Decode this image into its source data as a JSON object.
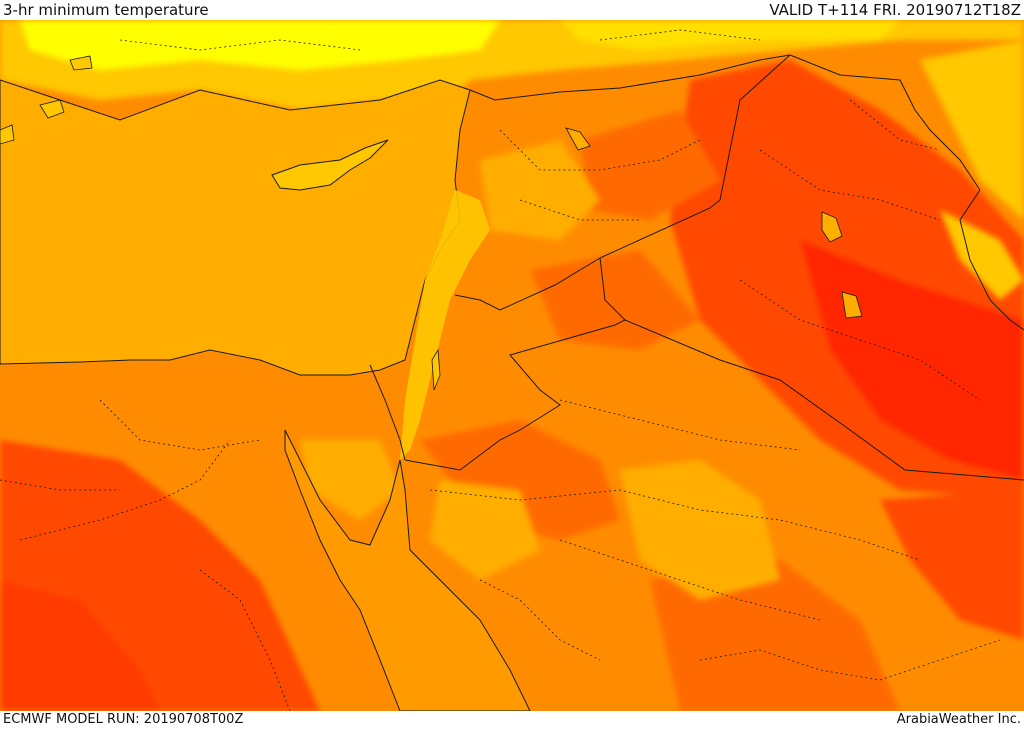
{
  "header": {
    "title": "3-hr minimum temperature",
    "valid": "VALID T+114 FRI. 20190712T18Z"
  },
  "footer": {
    "model_run": "ECMWF MODEL RUN: 20190708T00Z",
    "credit": "ArabiaWeather Inc."
  },
  "palette": {
    "sea": "#ffae00",
    "cool_yellow": "#ffff00",
    "light_orange": "#ffc800",
    "mid_orange": "#ff8c00",
    "warm_orange": "#ff6a00",
    "hot_red_orange": "#ff4a00",
    "hot_red": "#ff2600",
    "boundary_color": "#1a1a1a"
  }
}
